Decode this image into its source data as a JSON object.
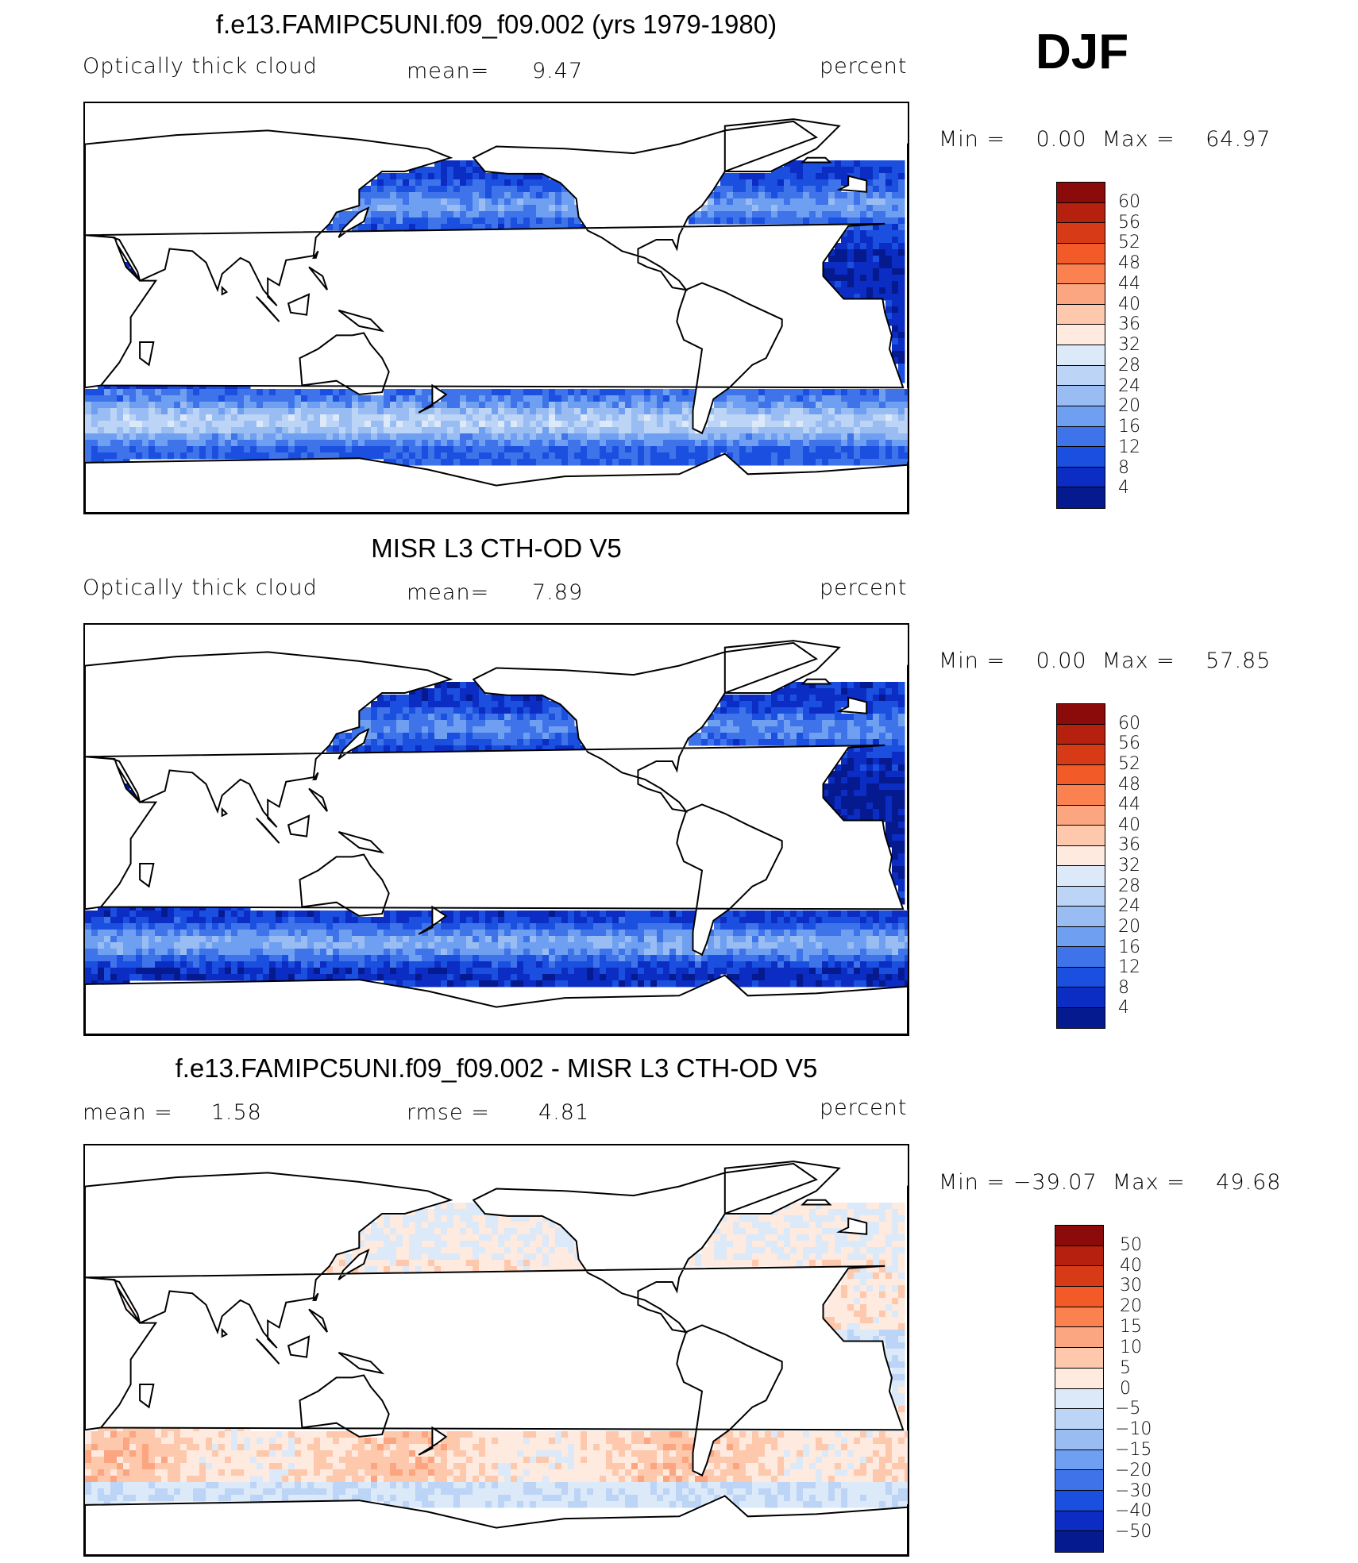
{
  "season": "DJF",
  "panels": [
    {
      "title": "f.e13.FAMIPC5UNI.f09_f09.002 (yrs 1979-1980)",
      "left_label": "Optically thick cloud",
      "center_label": "mean=",
      "center_value": "9.47",
      "right_label": "percent",
      "minmax": "Min =    0.00  Max =    64.97",
      "field": "model",
      "colorbar_labels": [
        "60",
        "56",
        "52",
        "48",
        "44",
        "40",
        "36",
        "32",
        "28",
        "24",
        "20",
        "16",
        "12",
        "8",
        "4"
      ],
      "colorbar_colors": [
        "#8b0a0a",
        "#b5200f",
        "#d73a16",
        "#f25a28",
        "#fb8150",
        "#fca681",
        "#fdc8ac",
        "#feeadf",
        "#dce9f8",
        "#bcd4f5",
        "#99bdf3",
        "#6f9ff0",
        "#3e73ea",
        "#1b4fe0",
        "#0b2dc4",
        "#051a8f"
      ]
    },
    {
      "title": "MISR L3 CTH-OD V5",
      "left_label": "Optically thick cloud",
      "center_label": "mean=",
      "center_value": "7.89",
      "right_label": "percent",
      "minmax": "Min =    0.00  Max =    57.85",
      "field": "obs",
      "colorbar_labels": [
        "60",
        "56",
        "52",
        "48",
        "44",
        "40",
        "36",
        "32",
        "28",
        "24",
        "20",
        "16",
        "12",
        "8",
        "4"
      ],
      "colorbar_colors": [
        "#8b0a0a",
        "#b5200f",
        "#d73a16",
        "#f25a28",
        "#fb8150",
        "#fca681",
        "#fdc8ac",
        "#feeadf",
        "#dce9f8",
        "#bcd4f5",
        "#99bdf3",
        "#6f9ff0",
        "#3e73ea",
        "#1b4fe0",
        "#0b2dc4",
        "#051a8f"
      ]
    },
    {
      "title": "f.e13.FAMIPC5UNI.f09_f09.002 - MISR L3 CTH-OD V5",
      "left_label": "mean =     1.58",
      "center_label": "rmse =",
      "center_value": "4.81",
      "right_label": "percent",
      "minmax": "Min = −39.07  Max =    49.68",
      "field": "diff",
      "colorbar_labels": [
        "50",
        "40",
        "30",
        "20",
        "15",
        "10",
        "5",
        "0",
        "−5",
        "−10",
        "−15",
        "−20",
        "−30",
        "−40",
        "−50"
      ],
      "colorbar_colors": [
        "#8b0a0a",
        "#b5200f",
        "#d73a16",
        "#f25a28",
        "#fb8150",
        "#fca681",
        "#fdc8ac",
        "#feeadf",
        "#dce9f8",
        "#bcd4f5",
        "#99bdf3",
        "#6f9ff0",
        "#3e73ea",
        "#1b4fe0",
        "#0b2dc4",
        "#051a8f"
      ]
    }
  ]
}
